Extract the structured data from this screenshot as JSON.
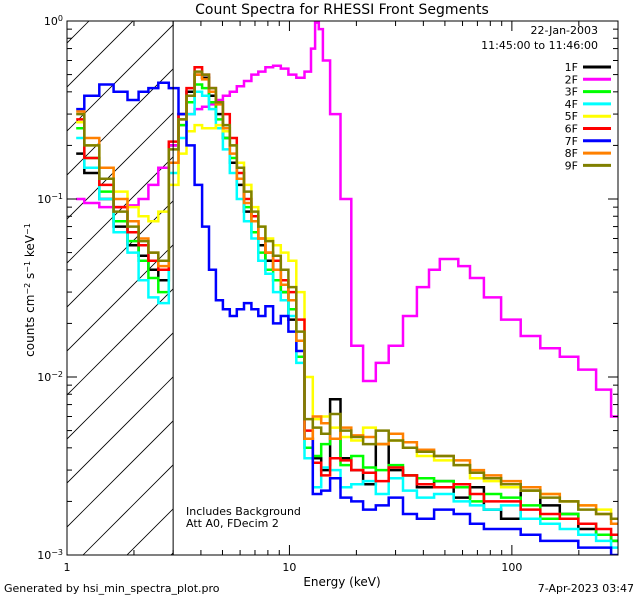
{
  "chart_data": {
    "type": "line",
    "title": "Count Spectra for RHESSI Front Segments",
    "xlabel": "Energy (keV)",
    "ylabel": "counts cm^-2 s^-1 keV^-1",
    "xscale": "log",
    "yscale": "log",
    "xlim": [
      1,
      300
    ],
    "ylim": [
      0.001,
      1
    ],
    "x_ticks": [
      {
        "value": 1,
        "label": "1"
      },
      {
        "value": 10,
        "label": "10"
      },
      {
        "value": 100,
        "label": "100"
      }
    ],
    "y_ticks": [
      {
        "value": 0.001,
        "base": "10",
        "exp": "−3"
      },
      {
        "value": 0.01,
        "base": "10",
        "exp": "−2"
      },
      {
        "value": 0.1,
        "base": "10",
        "exp": "−1"
      },
      {
        "value": 1,
        "base": "10",
        "exp": "0"
      }
    ],
    "attenuator_region": {
      "x_max": 3
    },
    "legend": {
      "position": "top-right",
      "date": "22-Jan-2003",
      "time_range": "11:45:00 to 11:46:00"
    },
    "annotations": [
      "Includes Background",
      "Att A0, FDecim 2"
    ],
    "series": [
      {
        "name": "1F",
        "color": "#000000",
        "x": [
          1.1,
          1.3,
          1.5,
          1.75,
          2.0,
          2.2,
          2.45,
          2.7,
          3.05,
          3.3,
          3.6,
          3.9,
          4.2,
          4.5,
          4.85,
          5.2,
          5.6,
          6.0,
          6.5,
          7.0,
          7.5,
          8.1,
          8.8,
          9.5,
          10.3,
          11.2,
          12.2,
          13.3,
          14.5,
          16,
          18,
          20,
          23,
          26,
          30,
          35,
          40,
          50,
          60,
          70,
          80,
          100,
          120,
          150,
          180,
          220,
          260,
          300
        ],
        "y": [
          0.18,
          0.14,
          0.1,
          0.07,
          0.055,
          0.048,
          0.04,
          0.035,
          0.2,
          0.3,
          0.4,
          0.5,
          0.48,
          0.38,
          0.3,
          0.22,
          0.16,
          0.12,
          0.085,
          0.08,
          0.055,
          0.045,
          0.04,
          0.03,
          0.021,
          0.013,
          0.0045,
          0.0035,
          0.003,
          0.0075,
          0.0035,
          0.003,
          0.0025,
          0.0042,
          0.003,
          0.0028,
          0.0024,
          0.0026,
          0.0021,
          0.0024,
          0.0018,
          0.0016,
          0.0023,
          0.0019,
          0.0017,
          0.0014,
          0.0013,
          0.0012
        ]
      },
      {
        "name": "2F",
        "color": "#ff00ff",
        "x": [
          1.1,
          1.3,
          1.5,
          1.75,
          2.0,
          2.2,
          2.45,
          2.7,
          3.05,
          3.3,
          3.6,
          3.9,
          4.2,
          4.5,
          4.85,
          5.2,
          5.6,
          6.0,
          6.5,
          7.0,
          7.5,
          8.1,
          8.8,
          9.5,
          10.3,
          11.2,
          12.2,
          12.8,
          13.3,
          13.8,
          14.5,
          16,
          18,
          20,
          23,
          26,
          30,
          35,
          40,
          45,
          50,
          55,
          60,
          70,
          80,
          100,
          120,
          150,
          180,
          220,
          260,
          300
        ],
        "y": [
          0.1,
          0.095,
          0.09,
          0.09,
          0.092,
          0.1,
          0.12,
          0.15,
          0.2,
          0.26,
          0.3,
          0.32,
          0.33,
          0.34,
          0.36,
          0.38,
          0.4,
          0.43,
          0.46,
          0.5,
          0.52,
          0.55,
          0.56,
          0.54,
          0.5,
          0.48,
          0.52,
          0.7,
          0.98,
          0.9,
          0.6,
          0.3,
          0.1,
          0.015,
          0.0095,
          0.012,
          0.015,
          0.022,
          0.032,
          0.04,
          0.046,
          0.046,
          0.042,
          0.036,
          0.028,
          0.021,
          0.017,
          0.0145,
          0.013,
          0.011,
          0.0085,
          0.006
        ]
      },
      {
        "name": "3F",
        "color": "#00ff00",
        "x": [
          1.1,
          1.3,
          1.5,
          1.75,
          2.0,
          2.2,
          2.45,
          2.7,
          3.05,
          3.3,
          3.6,
          3.9,
          4.2,
          4.5,
          4.85,
          5.2,
          5.6,
          6.0,
          6.5,
          7.0,
          7.5,
          8.1,
          8.8,
          9.5,
          10.3,
          11.2,
          12.2,
          13.3,
          14.5,
          16,
          18,
          20,
          23,
          26,
          30,
          35,
          40,
          50,
          60,
          70,
          80,
          100,
          120,
          150,
          180,
          220,
          260,
          300
        ],
        "y": [
          0.25,
          0.17,
          0.11,
          0.075,
          0.058,
          0.045,
          0.036,
          0.03,
          0.16,
          0.26,
          0.35,
          0.44,
          0.42,
          0.35,
          0.28,
          0.22,
          0.17,
          0.13,
          0.09,
          0.065,
          0.05,
          0.04,
          0.035,
          0.03,
          0.024,
          0.013,
          0.004,
          0.0036,
          0.0042,
          0.0045,
          0.0032,
          0.0036,
          0.0031,
          0.003,
          0.0032,
          0.0028,
          0.0027,
          0.0026,
          0.0024,
          0.002,
          0.0022,
          0.0021,
          0.0019,
          0.0016,
          0.0017,
          0.0015,
          0.0013,
          0.0012
        ]
      },
      {
        "name": "4F",
        "color": "#00ffff",
        "x": [
          1.1,
          1.3,
          1.5,
          1.75,
          2.0,
          2.2,
          2.45,
          2.7,
          3.05,
          3.3,
          3.6,
          3.9,
          4.2,
          4.5,
          4.85,
          5.2,
          5.6,
          6.0,
          6.5,
          7.0,
          7.5,
          8.1,
          8.8,
          9.5,
          10.3,
          11.2,
          12.2,
          13.3,
          14.5,
          16,
          18,
          20,
          23,
          26,
          30,
          35,
          40,
          50,
          60,
          70,
          80,
          100,
          120,
          150,
          180,
          220,
          260,
          300
        ],
        "y": [
          0.22,
          0.15,
          0.1,
          0.065,
          0.05,
          0.035,
          0.028,
          0.026,
          0.14,
          0.22,
          0.3,
          0.4,
          0.38,
          0.32,
          0.25,
          0.19,
          0.14,
          0.1,
          0.075,
          0.06,
          0.045,
          0.038,
          0.03,
          0.027,
          0.022,
          0.012,
          0.0035,
          0.0024,
          0.0031,
          0.003,
          0.0024,
          0.0025,
          0.0026,
          0.0022,
          0.0027,
          0.0023,
          0.0021,
          0.0022,
          0.002,
          0.0019,
          0.0018,
          0.0019,
          0.0016,
          0.0015,
          0.0014,
          0.0013,
          0.0012,
          0.0011
        ]
      },
      {
        "name": "5F",
        "color": "#ffff00",
        "x": [
          1.1,
          1.3,
          1.5,
          1.75,
          2.0,
          2.2,
          2.45,
          2.7,
          3.05,
          3.3,
          3.6,
          3.9,
          4.2,
          4.5,
          4.85,
          5.2,
          5.6,
          6.0,
          6.5,
          7.0,
          7.5,
          8.1,
          8.8,
          9.5,
          10.3,
          11.2,
          12.2,
          13.3,
          14.5,
          16,
          18,
          20,
          23,
          26,
          30,
          35,
          40,
          50,
          60,
          70,
          80,
          100,
          120,
          150,
          180,
          220,
          260,
          300
        ],
        "y": [
          0.27,
          0.2,
          0.15,
          0.11,
          0.09,
          0.08,
          0.075,
          0.085,
          0.12,
          0.18,
          0.24,
          0.26,
          0.25,
          0.25,
          0.26,
          0.24,
          0.2,
          0.16,
          0.12,
          0.09,
          0.07,
          0.06,
          0.055,
          0.05,
          0.045,
          0.03,
          0.01,
          0.0058,
          0.006,
          0.0052,
          0.0046,
          0.0044,
          0.0052,
          0.0042,
          0.0044,
          0.004,
          0.0036,
          0.0034,
          0.0032,
          0.0027,
          0.0026,
          0.0024,
          0.0023,
          0.0022,
          0.002,
          0.0019,
          0.0018,
          0.0016
        ]
      },
      {
        "name": "6F",
        "color": "#ff0000",
        "x": [
          1.1,
          1.3,
          1.5,
          1.75,
          2.0,
          2.2,
          2.45,
          2.7,
          3.05,
          3.3,
          3.6,
          3.9,
          4.2,
          4.5,
          4.85,
          5.2,
          5.6,
          6.0,
          6.5,
          7.0,
          7.5,
          8.1,
          8.8,
          9.5,
          10.3,
          11.2,
          12.2,
          13.3,
          14.5,
          16,
          18,
          20,
          23,
          26,
          30,
          35,
          40,
          50,
          60,
          70,
          80,
          100,
          120,
          150,
          180,
          220,
          260,
          300
        ],
        "y": [
          0.28,
          0.17,
          0.12,
          0.09,
          0.065,
          0.055,
          0.045,
          0.04,
          0.21,
          0.3,
          0.42,
          0.55,
          0.5,
          0.42,
          0.35,
          0.3,
          0.22,
          0.14,
          0.1,
          0.08,
          0.06,
          0.05,
          0.045,
          0.035,
          0.03,
          0.021,
          0.005,
          0.0033,
          0.0028,
          0.0035,
          0.0034,
          0.003,
          0.0029,
          0.0026,
          0.0031,
          0.0028,
          0.0025,
          0.0024,
          0.0025,
          0.0022,
          0.002,
          0.002,
          0.0018,
          0.0017,
          0.0016,
          0.0015,
          0.0014,
          0.0013
        ]
      },
      {
        "name": "7F",
        "color": "#0000ff",
        "x": [
          1.1,
          1.3,
          1.5,
          1.75,
          2.0,
          2.2,
          2.45,
          2.7,
          3.05,
          3.3,
          3.6,
          3.9,
          4.2,
          4.5,
          4.85,
          5.2,
          5.6,
          6.0,
          6.5,
          7.0,
          7.5,
          8.1,
          8.8,
          9.5,
          10.3,
          11.2,
          12.2,
          13.3,
          14.5,
          16,
          18,
          20,
          23,
          26,
          30,
          35,
          40,
          50,
          60,
          70,
          80,
          100,
          120,
          150,
          180,
          220,
          260,
          300
        ],
        "y": [
          0.32,
          0.38,
          0.44,
          0.4,
          0.36,
          0.4,
          0.42,
          0.45,
          0.42,
          0.3,
          0.2,
          0.12,
          0.07,
          0.04,
          0.027,
          0.024,
          0.022,
          0.024,
          0.026,
          0.024,
          0.022,
          0.025,
          0.02,
          0.022,
          0.018,
          0.014,
          0.0045,
          0.0022,
          0.0023,
          0.0027,
          0.0021,
          0.002,
          0.0018,
          0.0019,
          0.0021,
          0.0017,
          0.0016,
          0.0018,
          0.0017,
          0.0015,
          0.0014,
          0.0014,
          0.0013,
          0.0012,
          0.0012,
          0.0011,
          0.0011,
          0.001
        ]
      },
      {
        "name": "8F",
        "color": "#ff8000",
        "x": [
          1.1,
          1.3,
          1.5,
          1.75,
          2.0,
          2.2,
          2.45,
          2.7,
          3.05,
          3.3,
          3.6,
          3.9,
          4.2,
          4.5,
          4.85,
          5.2,
          5.6,
          6.0,
          6.5,
          7.0,
          7.5,
          8.1,
          8.8,
          9.5,
          10.3,
          11.2,
          12.2,
          13.3,
          14.5,
          16,
          18,
          20,
          23,
          26,
          30,
          35,
          40,
          50,
          60,
          70,
          80,
          100,
          120,
          150,
          180,
          220,
          260,
          300
        ],
        "y": [
          0.31,
          0.22,
          0.15,
          0.1,
          0.075,
          0.06,
          0.05,
          0.042,
          0.16,
          0.28,
          0.38,
          0.5,
          0.47,
          0.4,
          0.34,
          0.25,
          0.18,
          0.13,
          0.095,
          0.075,
          0.06,
          0.05,
          0.04,
          0.033,
          0.027,
          0.016,
          0.0045,
          0.006,
          0.0055,
          0.0045,
          0.0052,
          0.0047,
          0.0046,
          0.0042,
          0.0048,
          0.0043,
          0.0039,
          0.0036,
          0.0034,
          0.003,
          0.0028,
          0.0026,
          0.0024,
          0.0022,
          0.002,
          0.0019,
          0.0017,
          0.0015
        ]
      },
      {
        "name": "9F",
        "color": "#808000",
        "x": [
          1.1,
          1.3,
          1.5,
          1.75,
          2.0,
          2.2,
          2.45,
          2.7,
          3.05,
          3.3,
          3.6,
          3.9,
          4.2,
          4.5,
          4.85,
          5.2,
          5.6,
          6.0,
          6.5,
          7.0,
          7.5,
          8.1,
          8.8,
          9.5,
          10.3,
          11.2,
          12.2,
          13.3,
          14.5,
          16,
          18,
          20,
          23,
          26,
          30,
          35,
          40,
          50,
          60,
          70,
          80,
          100,
          120,
          150,
          180,
          220,
          260,
          300
        ],
        "y": [
          0.3,
          0.2,
          0.13,
          0.085,
          0.07,
          0.058,
          0.05,
          0.045,
          0.19,
          0.28,
          0.38,
          0.52,
          0.5,
          0.42,
          0.35,
          0.26,
          0.2,
          0.15,
          0.11,
          0.085,
          0.07,
          0.058,
          0.048,
          0.04,
          0.032,
          0.018,
          0.0058,
          0.0052,
          0.0048,
          0.0062,
          0.005,
          0.0046,
          0.0042,
          0.005,
          0.0044,
          0.004,
          0.0038,
          0.0036,
          0.0032,
          0.0029,
          0.0027,
          0.0025,
          0.0023,
          0.0021,
          0.002,
          0.0018,
          0.0017,
          0.0016
        ]
      }
    ]
  },
  "footer": {
    "generated_by": "Generated by hsi_min_spectra_plot.pro",
    "timestamp": "7-Apr-2023 03:47"
  }
}
